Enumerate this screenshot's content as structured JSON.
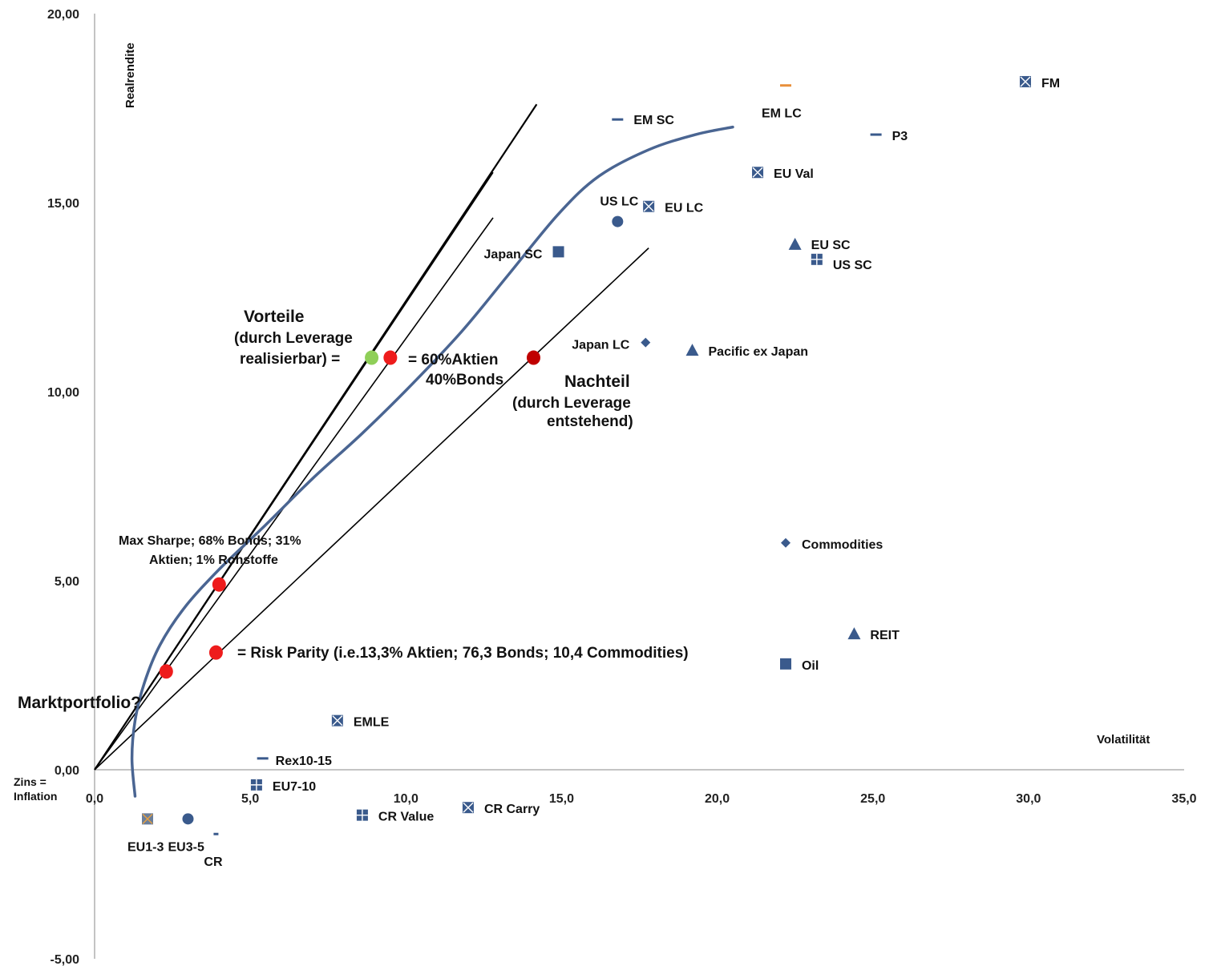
{
  "chart_data": {
    "type": "scatter",
    "xlabel": "Volatilität",
    "ylabel": "Realrendite",
    "xlim": [
      0,
      35
    ],
    "ylim": [
      -5,
      20
    ],
    "x_ticks": [
      "0,0",
      "5,0",
      "10,0",
      "15,0",
      "20,0",
      "25,0",
      "30,0",
      "35,0"
    ],
    "y_ticks": [
      "-5,00",
      "0,00",
      "5,00",
      "10,00",
      "15,00",
      "20,00"
    ],
    "origin_label": [
      "Zins =",
      "Inflation"
    ],
    "colors": {
      "marker": "#3a5a8c",
      "frontier": "#4a6592",
      "highlight": "#ee1c1c",
      "dark_highlight": "#c00000",
      "green": "#8fcf58",
      "em_lc": "#e8903c"
    },
    "points": [
      {
        "label": "FM",
        "x": 29.9,
        "y": 18.2,
        "marker": "square-x"
      },
      {
        "label": "EM LC",
        "x": 22.2,
        "y": 18.1,
        "marker": "dash-orange"
      },
      {
        "label": "EM SC",
        "x": 16.8,
        "y": 17.2,
        "marker": "dash"
      },
      {
        "label": "P3",
        "x": 25.1,
        "y": 16.8,
        "marker": "dash"
      },
      {
        "label": "EU Val",
        "x": 21.3,
        "y": 15.8,
        "marker": "square-x"
      },
      {
        "label": "US LC",
        "x": 16.8,
        "y": 14.5,
        "marker": "circle"
      },
      {
        "label": "EU LC",
        "x": 17.8,
        "y": 14.9,
        "marker": "square-x"
      },
      {
        "label": "EU SC",
        "x": 22.5,
        "y": 13.9,
        "marker": "triangle"
      },
      {
        "label": "US SC",
        "x": 23.2,
        "y": 13.5,
        "marker": "square-plus"
      },
      {
        "label": "Japan SC",
        "x": 14.9,
        "y": 13.7,
        "marker": "square"
      },
      {
        "label": "Japan LC",
        "x": 17.7,
        "y": 11.3,
        "marker": "diamond"
      },
      {
        "label": "Pacific ex Japan",
        "x": 19.2,
        "y": 11.1,
        "marker": "triangle"
      },
      {
        "label": "Commodities",
        "x": 22.2,
        "y": 6.0,
        "marker": "diamond"
      },
      {
        "label": "REIT",
        "x": 24.4,
        "y": 3.6,
        "marker": "triangle"
      },
      {
        "label": "Oil",
        "x": 22.2,
        "y": 2.8,
        "marker": "square"
      },
      {
        "label": "EMLE",
        "x": 7.8,
        "y": 1.3,
        "marker": "square-x"
      },
      {
        "label": "Rex10-15",
        "x": 5.4,
        "y": 0.3,
        "marker": "dash"
      },
      {
        "label": "EU7-10",
        "x": 5.2,
        "y": -0.4,
        "marker": "square-plus"
      },
      {
        "label": "CR Value",
        "x": 8.6,
        "y": -1.2,
        "marker": "square-plus"
      },
      {
        "label": "CR Carry",
        "x": 12.0,
        "y": -1.0,
        "marker": "square-x"
      },
      {
        "label": "EU1-3",
        "x": 1.7,
        "y": -1.3,
        "marker": "square-x-orange"
      },
      {
        "label": "EU3-5",
        "x": 3.0,
        "y": -1.3,
        "marker": "circle"
      },
      {
        "label": "CR",
        "x": 3.9,
        "y": -1.7,
        "marker": "dash-small"
      }
    ],
    "frontier": {
      "x": [
        1.3,
        1.2,
        1.3,
        1.6,
        2.1,
        2.9,
        4.0,
        5.4,
        7.0,
        8.6,
        10.2,
        11.8,
        13.3,
        14.9,
        16.2,
        17.8,
        19.3,
        20.5
      ],
      "y": [
        -0.7,
        0.3,
        1.3,
        2.3,
        3.3,
        4.3,
        5.3,
        6.4,
        7.7,
        8.9,
        10.2,
        11.6,
        13.1,
        14.7,
        15.7,
        16.4,
        16.8,
        17.0
      ]
    },
    "lines": [
      {
        "name": "tangent-steep",
        "x": [
          0,
          14.2
        ],
        "y": [
          0,
          17.6
        ]
      },
      {
        "name": "tangent-market",
        "x": [
          0,
          12.8
        ],
        "y": [
          0,
          15.8
        ]
      },
      {
        "name": "tangent-mid",
        "x": [
          0,
          12.8
        ],
        "y": [
          0,
          14.6
        ]
      },
      {
        "name": "tangent-lower",
        "x": [
          0,
          17.8
        ],
        "y": [
          0,
          13.8
        ]
      }
    ],
    "highlights": [
      {
        "name": "green-point",
        "x": 8.9,
        "y": 10.9,
        "color": "#8fcf58"
      },
      {
        "name": "sixty-forty-point",
        "x": 9.5,
        "y": 10.9,
        "color": "#ee1c1c"
      },
      {
        "name": "nachteil-point",
        "x": 14.1,
        "y": 10.9,
        "color": "#c00000"
      },
      {
        "name": "max-sharpe-point",
        "x": 4.0,
        "y": 4.9,
        "color": "#ee1c1c"
      },
      {
        "name": "risk-parity-point",
        "x": 3.9,
        "y": 3.1,
        "color": "#ee1c1c"
      },
      {
        "name": "market-portfolio-point",
        "x": 2.3,
        "y": 2.6,
        "color": "#ee1c1c"
      }
    ],
    "annotations": {
      "vorteile": "Vorteile",
      "vorteile_sub1": "(durch Leverage",
      "vorteile_sub2": "realisierbar) =",
      "sixty_forty_1": "= 60%Aktien",
      "sixty_forty_2": "40%Bonds",
      "nachteil": "Nachteil",
      "nachteil_sub1": "(durch Leverage",
      "nachteil_sub2": "entstehend)",
      "max_sharpe_1": "Max Sharpe; 68% Bonds; 31%",
      "max_sharpe_2": "Aktien; 1% Rohstoffe",
      "risk_parity": "= Risk Parity (i.e.13,3% Aktien; 76,3 Bonds; 10,4 Commodities)",
      "marktportfolio": "Marktportfolio?"
    }
  }
}
